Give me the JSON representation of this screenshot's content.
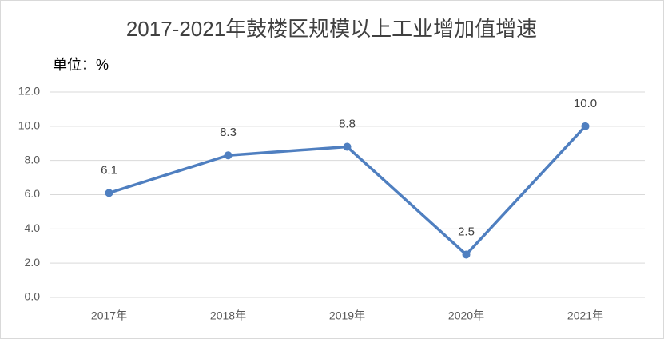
{
  "chart_data": {
    "type": "line",
    "title": "2017-2021年鼓楼区规模以上工业增加值增速",
    "unit_label": "单位：%",
    "categories": [
      "2017年",
      "2018年",
      "2019年",
      "2020年",
      "2021年"
    ],
    "series": [
      {
        "name": "增速",
        "color": "#4f7fc0",
        "values": [
          6.1,
          8.3,
          8.8,
          2.5,
          10.0
        ],
        "value_labels": [
          "6.1",
          "8.3",
          "8.8",
          "2.5",
          "10.0"
        ]
      }
    ],
    "ylim": [
      0,
      12
    ],
    "yticks": [
      {
        "value": 0,
        "label": "0.0"
      },
      {
        "value": 2,
        "label": "2.0"
      },
      {
        "value": 4,
        "label": "4.0"
      },
      {
        "value": 6,
        "label": "6.0"
      },
      {
        "value": 8,
        "label": "8.0"
      },
      {
        "value": 10,
        "label": "10.0"
      },
      {
        "value": 12,
        "label": "12.0"
      }
    ],
    "grid": true
  }
}
